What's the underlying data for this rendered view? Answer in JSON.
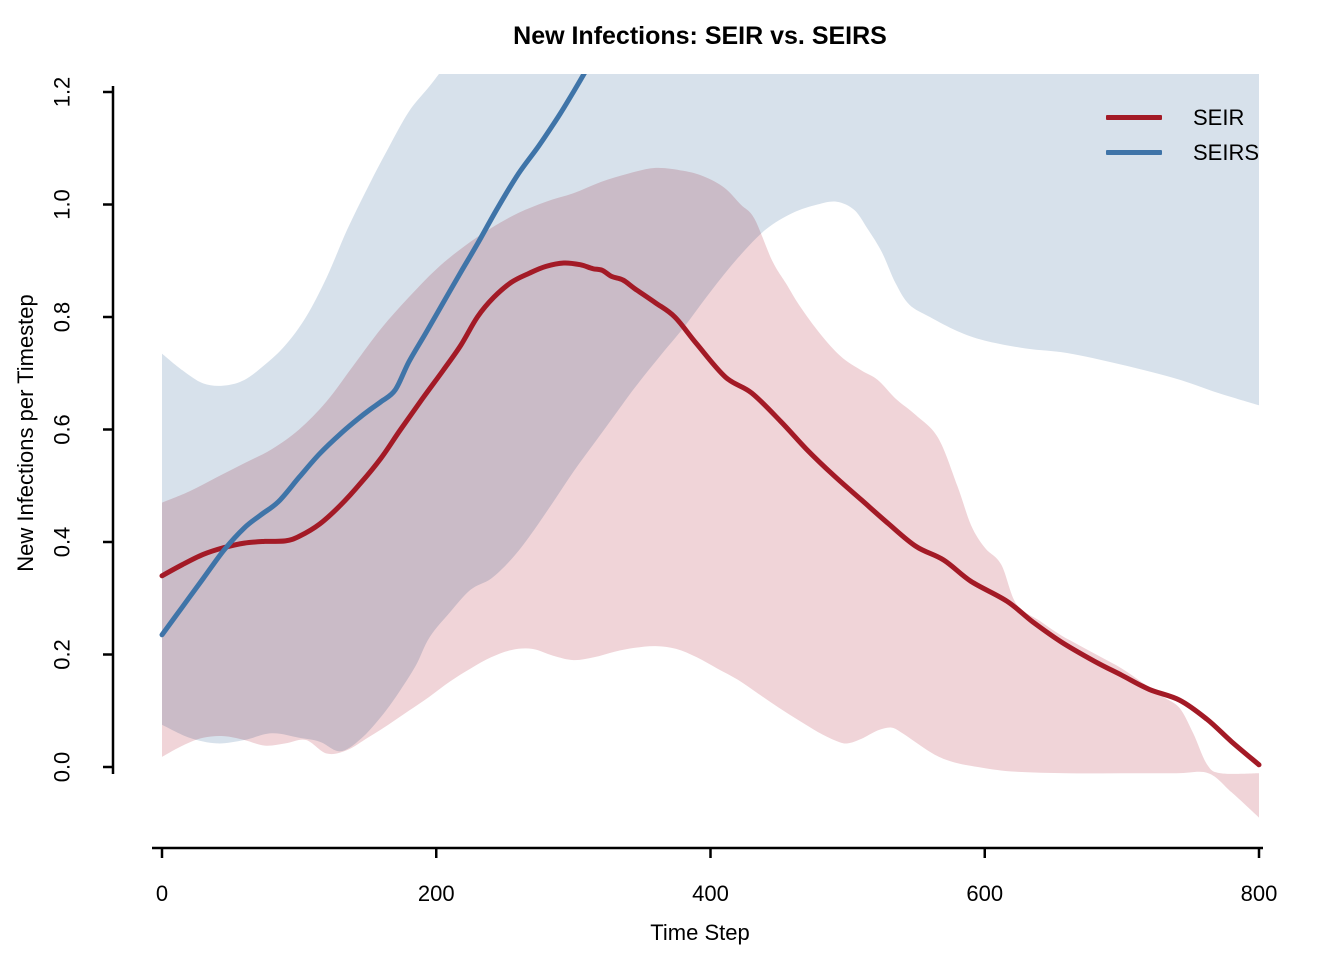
{
  "title": "New Infections: SEIR vs. SEIRS",
  "x_axis": {
    "label": "Time Step",
    "tick_labels": [
      "0",
      "200",
      "400",
      "600",
      "800"
    ],
    "tick_values": [
      0,
      200,
      400,
      600,
      800
    ],
    "range": [
      0,
      800
    ]
  },
  "y_axis": {
    "label": "New Infections per Timestep",
    "tick_labels": [
      "0.0",
      "0.2",
      "0.4",
      "0.6",
      "0.8",
      "1.0",
      "1.2"
    ],
    "tick_values": [
      0,
      0.2,
      0.4,
      0.6,
      0.8,
      1.0,
      1.2
    ],
    "range": [
      0,
      1.2
    ]
  },
  "legend": {
    "position": "top-right",
    "items": [
      {
        "label": "SEIR",
        "color": "#A31A26"
      },
      {
        "label": "SEIRS",
        "color": "#3F74A8"
      }
    ]
  },
  "colors": {
    "seir_line": "#A31A26",
    "seirs_line": "#3F74A8",
    "seir_band": "#F0D4D8",
    "seirs_band": "#D7E1EB",
    "band_overlap": "#C9BCC9",
    "axis": "#000000",
    "background": "#FFFFFF"
  },
  "chart_data": {
    "type": "line",
    "title": "New Infections: SEIR vs. SEIRS",
    "xlabel": "Time Step",
    "ylabel": "New Infections per Timestep",
    "xlim": [
      0,
      800
    ],
    "ylim": [
      0,
      1.2
    ],
    "x_ticks": [
      0,
      200,
      400,
      600,
      800
    ],
    "y_ticks": [
      0.0,
      0.2,
      0.4,
      0.6,
      0.8,
      1.0,
      1.2
    ],
    "grid": false,
    "legend_position": "top-right",
    "series": [
      {
        "name": "SEIR",
        "style": "mean-line-with-confidence-band",
        "color": "#A31A26",
        "band_color": "#F0D4D8",
        "line": [
          [
            0,
            0.34
          ],
          [
            15,
            0.36
          ],
          [
            30,
            0.378
          ],
          [
            45,
            0.39
          ],
          [
            60,
            0.398
          ],
          [
            75,
            0.401
          ],
          [
            90,
            0.402
          ],
          [
            100,
            0.41
          ],
          [
            115,
            0.432
          ],
          [
            130,
            0.465
          ],
          [
            145,
            0.505
          ],
          [
            160,
            0.55
          ],
          [
            174,
            0.6
          ],
          [
            190,
            0.655
          ],
          [
            205,
            0.705
          ],
          [
            218,
            0.75
          ],
          [
            230,
            0.8
          ],
          [
            242,
            0.835
          ],
          [
            255,
            0.862
          ],
          [
            268,
            0.878
          ],
          [
            280,
            0.89
          ],
          [
            293,
            0.896
          ],
          [
            305,
            0.893
          ],
          [
            314,
            0.886
          ],
          [
            321,
            0.883
          ],
          [
            328,
            0.872
          ],
          [
            336,
            0.866
          ],
          [
            345,
            0.85
          ],
          [
            360,
            0.825
          ],
          [
            374,
            0.8
          ],
          [
            390,
            0.752
          ],
          [
            411,
            0.693
          ],
          [
            430,
            0.665
          ],
          [
            451,
            0.615
          ],
          [
            470,
            0.565
          ],
          [
            490,
            0.518
          ],
          [
            510,
            0.475
          ],
          [
            530,
            0.432
          ],
          [
            550,
            0.392
          ],
          [
            570,
            0.368
          ],
          [
            590,
            0.33
          ],
          [
            616,
            0.295
          ],
          [
            635,
            0.258
          ],
          [
            656,
            0.222
          ],
          [
            680,
            0.188
          ],
          [
            700,
            0.163
          ],
          [
            720,
            0.138
          ],
          [
            742,
            0.119
          ],
          [
            762,
            0.085
          ],
          [
            780,
            0.045
          ],
          [
            800,
            0.004
          ]
        ],
        "band_upper": [
          [
            0,
            0.47
          ],
          [
            20,
            0.49
          ],
          [
            40,
            0.515
          ],
          [
            60,
            0.54
          ],
          [
            80,
            0.565
          ],
          [
            100,
            0.6
          ],
          [
            120,
            0.65
          ],
          [
            140,
            0.715
          ],
          [
            160,
            0.78
          ],
          [
            180,
            0.835
          ],
          [
            200,
            0.885
          ],
          [
            220,
            0.925
          ],
          [
            240,
            0.958
          ],
          [
            260,
            0.985
          ],
          [
            280,
            1.005
          ],
          [
            300,
            1.02
          ],
          [
            320,
            1.04
          ],
          [
            340,
            1.055
          ],
          [
            360,
            1.065
          ],
          [
            380,
            1.06
          ],
          [
            395,
            1.05
          ],
          [
            410,
            1.03
          ],
          [
            422,
            1.0
          ],
          [
            432,
            0.975
          ],
          [
            445,
            0.9
          ],
          [
            455,
            0.86
          ],
          [
            465,
            0.82
          ],
          [
            480,
            0.77
          ],
          [
            495,
            0.73
          ],
          [
            510,
            0.705
          ],
          [
            522,
            0.688
          ],
          [
            535,
            0.655
          ],
          [
            550,
            0.625
          ],
          [
            566,
            0.585
          ],
          [
            580,
            0.5
          ],
          [
            590,
            0.43
          ],
          [
            600,
            0.39
          ],
          [
            612,
            0.36
          ],
          [
            623,
            0.29
          ],
          [
            640,
            0.26
          ],
          [
            655,
            0.235
          ],
          [
            670,
            0.215
          ],
          [
            685,
            0.195
          ],
          [
            700,
            0.175
          ],
          [
            715,
            0.15
          ],
          [
            730,
            0.125
          ],
          [
            742,
            0.105
          ],
          [
            752,
            0.06
          ],
          [
            762,
            0.005
          ],
          [
            772,
            -0.011
          ],
          [
            800,
            -0.011
          ]
        ],
        "band_lower": [
          [
            0,
            0.018
          ],
          [
            15,
            0.038
          ],
          [
            30,
            0.052
          ],
          [
            45,
            0.055
          ],
          [
            60,
            0.048
          ],
          [
            75,
            0.038
          ],
          [
            90,
            0.042
          ],
          [
            105,
            0.048
          ],
          [
            120,
            0.024
          ],
          [
            135,
            0.03
          ],
          [
            150,
            0.052
          ],
          [
            165,
            0.075
          ],
          [
            180,
            0.1
          ],
          [
            195,
            0.125
          ],
          [
            210,
            0.152
          ],
          [
            225,
            0.175
          ],
          [
            240,
            0.195
          ],
          [
            255,
            0.208
          ],
          [
            270,
            0.21
          ],
          [
            285,
            0.198
          ],
          [
            300,
            0.19
          ],
          [
            315,
            0.195
          ],
          [
            330,
            0.205
          ],
          [
            345,
            0.212
          ],
          [
            360,
            0.215
          ],
          [
            375,
            0.21
          ],
          [
            390,
            0.195
          ],
          [
            405,
            0.175
          ],
          [
            420,
            0.155
          ],
          [
            435,
            0.13
          ],
          [
            450,
            0.105
          ],
          [
            465,
            0.082
          ],
          [
            480,
            0.06
          ],
          [
            492,
            0.046
          ],
          [
            500,
            0.042
          ],
          [
            510,
            0.05
          ],
          [
            522,
            0.065
          ],
          [
            532,
            0.07
          ],
          [
            540,
            0.06
          ],
          [
            552,
            0.04
          ],
          [
            565,
            0.02
          ],
          [
            578,
            0.008
          ],
          [
            595,
            0.0
          ],
          [
            620,
            -0.008
          ],
          [
            660,
            -0.011
          ],
          [
            700,
            -0.011
          ],
          [
            740,
            -0.011
          ],
          [
            763,
            -0.011
          ],
          [
            780,
            -0.045
          ],
          [
            800,
            -0.09
          ]
        ]
      },
      {
        "name": "SEIRS",
        "style": "mean-line-with-confidence-band",
        "color": "#3F74A8",
        "band_color": "#D7E1EB",
        "line": [
          [
            0,
            0.235
          ],
          [
            15,
            0.285
          ],
          [
            30,
            0.335
          ],
          [
            45,
            0.385
          ],
          [
            60,
            0.425
          ],
          [
            72,
            0.448
          ],
          [
            85,
            0.472
          ],
          [
            100,
            0.515
          ],
          [
            115,
            0.557
          ],
          [
            130,
            0.592
          ],
          [
            142,
            0.617
          ],
          [
            152,
            0.636
          ],
          [
            160,
            0.65
          ],
          [
            170,
            0.67
          ],
          [
            180,
            0.72
          ],
          [
            192,
            0.77
          ],
          [
            205,
            0.825
          ],
          [
            218,
            0.88
          ],
          [
            230,
            0.93
          ],
          [
            245,
            0.995
          ],
          [
            260,
            1.055
          ],
          [
            275,
            1.105
          ],
          [
            290,
            1.16
          ],
          [
            300,
            1.2
          ],
          [
            312,
            1.25
          ]
        ],
        "band_upper": [
          [
            0,
            0.735
          ],
          [
            15,
            0.705
          ],
          [
            30,
            0.682
          ],
          [
            45,
            0.678
          ],
          [
            60,
            0.688
          ],
          [
            75,
            0.715
          ],
          [
            90,
            0.75
          ],
          [
            105,
            0.8
          ],
          [
            120,
            0.87
          ],
          [
            135,
            0.955
          ],
          [
            150,
            1.03
          ],
          [
            165,
            1.1
          ],
          [
            180,
            1.165
          ],
          [
            195,
            1.21
          ],
          [
            215,
            1.27
          ],
          [
            240,
            1.32
          ],
          [
            500,
            1.32
          ],
          [
            800,
            1.32
          ]
        ],
        "band_lower": [
          [
            0,
            0.075
          ],
          [
            20,
            0.052
          ],
          [
            40,
            0.042
          ],
          [
            60,
            0.048
          ],
          [
            80,
            0.06
          ],
          [
            100,
            0.052
          ],
          [
            115,
            0.045
          ],
          [
            130,
            0.028
          ],
          [
            145,
            0.05
          ],
          [
            160,
            0.09
          ],
          [
            172,
            0.13
          ],
          [
            185,
            0.18
          ],
          [
            195,
            0.23
          ],
          [
            210,
            0.275
          ],
          [
            225,
            0.315
          ],
          [
            240,
            0.335
          ],
          [
            255,
            0.37
          ],
          [
            268,
            0.41
          ],
          [
            285,
            0.47
          ],
          [
            300,
            0.525
          ],
          [
            315,
            0.575
          ],
          [
            330,
            0.625
          ],
          [
            345,
            0.675
          ],
          [
            363,
            0.73
          ],
          [
            380,
            0.78
          ],
          [
            400,
            0.845
          ],
          [
            420,
            0.905
          ],
          [
            440,
            0.955
          ],
          [
            460,
            0.985
          ],
          [
            478,
            1.0
          ],
          [
            492,
            1.005
          ],
          [
            505,
            0.99
          ],
          [
            515,
            0.955
          ],
          [
            525,
            0.915
          ],
          [
            535,
            0.86
          ],
          [
            545,
            0.822
          ],
          [
            560,
            0.8
          ],
          [
            580,
            0.775
          ],
          [
            600,
            0.758
          ],
          [
            630,
            0.744
          ],
          [
            660,
            0.736
          ],
          [
            700,
            0.715
          ],
          [
            740,
            0.69
          ],
          [
            770,
            0.665
          ],
          [
            800,
            0.643
          ]
        ]
      }
    ]
  }
}
